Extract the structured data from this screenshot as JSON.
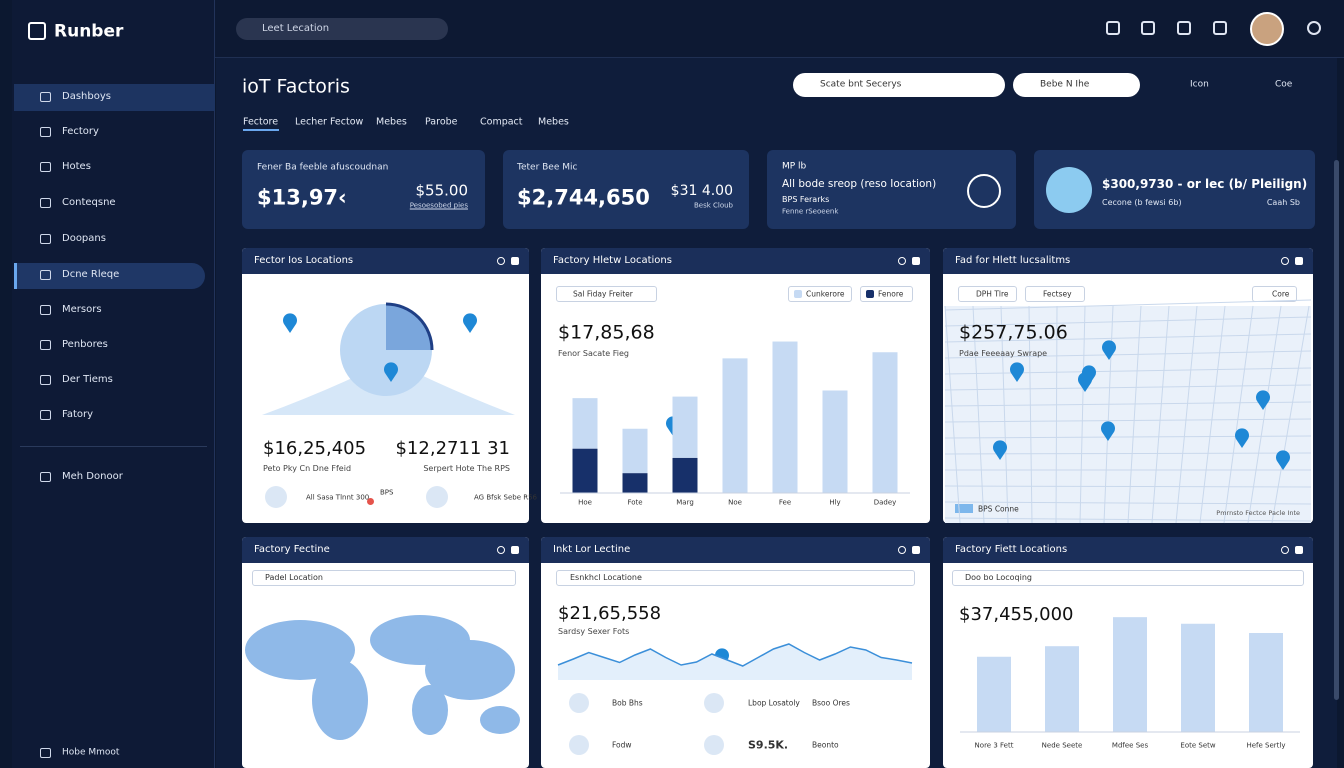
{
  "app": {
    "logo": "Runber",
    "search": "Leet Lecation"
  },
  "sidebar": {
    "items": [
      "Dashboys",
      "Fectory",
      "Hotes",
      "Conteqsne",
      "Doopans",
      "Dcne Rleqe",
      "Mersors",
      "Penbores",
      "Der Tiems",
      "Fatory"
    ],
    "extra": "Meh Donoor",
    "footer": "Hobe Mmoot"
  },
  "header": {
    "title": "ioT Factoris",
    "search": "Scate bnt Secerys",
    "dropdown": "Bebe N Ihe",
    "action1": "Icon",
    "action2": "Coe"
  },
  "tabs": [
    "Fectore",
    "Lecher Fectow",
    "Mebes",
    "Parobe",
    "Compact",
    "Mebes"
  ],
  "kpis": [
    {
      "label": "Fener Ba feeble afuscoudnan",
      "value": "$13,97‹",
      "side_value": "$55.00",
      "side_label": "Pesoesobed pies"
    },
    {
      "label": "Teter Bee Mic",
      "value": "$2,744,650",
      "side_value": "$31 4.00",
      "side_label": "Besk Cloub"
    },
    {
      "label": "MP lb",
      "value": "All bode sreop (reso Iocation)",
      "side_value": "BPS Ferarks",
      "side_label": "Fenne rSeoeenk"
    },
    {
      "value": "$300,9730 - or lec (b/ Pleilign)",
      "label": "Cecone (b fewsi 6b)",
      "side_label": "Caah Sb"
    }
  ],
  "panels": [
    {
      "title": "Fector Ios Locations",
      "value": "$16,25,405",
      "caption": "Peto Pky Cn Dne Ffeid",
      "value2": "$12,2711 31",
      "caption2": "Serpert Hote The RPS",
      "stat1": "All Sasa Tlnnt 300",
      "stat2": "BPS",
      "stat3": "AG Bfsk Sebe R56"
    },
    {
      "title": "Factory Hletw Locations",
      "filter": "Sal Fiday Freiter",
      "value": "$17,85,68",
      "caption": "Fenor Sacate Fieg"
    },
    {
      "title": "Fad for Hlett lucsalitms",
      "filter": "DPH Tlre",
      "filter2": "Fectsey",
      "button": "Core",
      "value": "$257,75.06",
      "caption": "Pdae Feeeaay Swrape",
      "legend": "BPS Conne",
      "footer": "Pmrnsto Fectce Pacle Inte"
    },
    {
      "title": "Factory Fectine",
      "filter": "Padel Location"
    },
    {
      "title": "Inkt Lor Lectine",
      "filter": "Esnkhcl Locatione",
      "value": "$21,65,558",
      "caption": "Sardsy Sexer Fots",
      "items": [
        "Bob Bhs",
        "Lbop Losatoly",
        "Bsoo Ores",
        "Fodw",
        "S9.5K.",
        "Beonto"
      ]
    },
    {
      "title": "Factory Fiett Locations",
      "filter": "Doo bo Locoqing",
      "value": "$37,455,000"
    }
  ],
  "chart_data": [
    {
      "type": "bar",
      "stacked": true,
      "categories": [
        "Hoe",
        "Fote",
        "Marg",
        "Noe",
        "Fee",
        "Hly",
        "Dadey"
      ],
      "series": [
        {
          "name": "Fenore",
          "color": "#17306a",
          "values": [
            29,
            13,
            23,
            0,
            0,
            0,
            0
          ]
        },
        {
          "name": "Cunkerore",
          "color": "#c6daf3",
          "values": [
            33,
            29,
            40,
            88,
            99,
            67,
            92
          ]
        }
      ],
      "ylim": [
        0,
        100
      ]
    },
    {
      "type": "line",
      "color": "#3b8fd9",
      "values": [
        30,
        42,
        55,
        45,
        35,
        50,
        62,
        45,
        30,
        36,
        52,
        40,
        28,
        45,
        62,
        72,
        55,
        40,
        52,
        66,
        60,
        45,
        40,
        34
      ],
      "ylim": [
        0,
        100
      ]
    },
    {
      "type": "bar",
      "categories": [
        "Nore 3 Fett",
        "Nede Seete",
        "Mdfee Ses",
        "Eote Setw",
        "Hefe Sertly"
      ],
      "values": [
        57,
        65,
        87,
        82,
        75
      ],
      "color": "#c6daf3",
      "ylim": [
        0,
        100
      ]
    }
  ]
}
